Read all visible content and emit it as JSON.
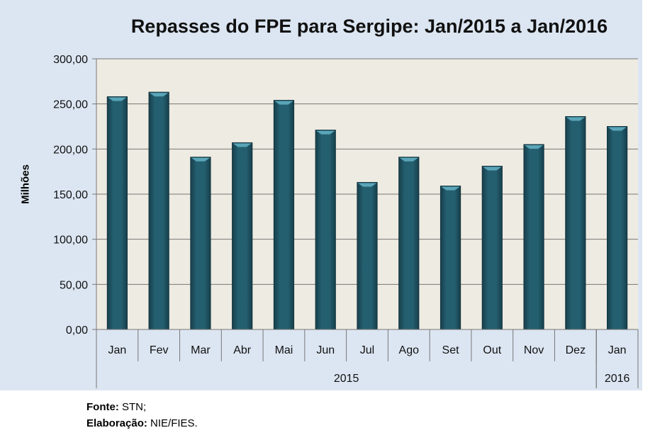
{
  "chart_data": {
    "type": "bar",
    "title": "Repasses do FPE para Sergipe: Jan/2015 a Jan/2016",
    "ylabel": "Milhões",
    "xlabel": "",
    "categories": [
      "Jan",
      "Fev",
      "Mar",
      "Abr",
      "Mai",
      "Jun",
      "Jul",
      "Ago",
      "Set",
      "Out",
      "Nov",
      "Dez",
      "Jan"
    ],
    "groups": [
      {
        "label": "2015",
        "span": 12
      },
      {
        "label": "2016",
        "span": 1
      }
    ],
    "values": [
      258,
      263,
      191,
      207,
      254,
      221,
      163,
      191,
      159,
      181,
      205,
      236,
      225
    ],
    "ylim": [
      0,
      300
    ],
    "yticks": [
      0,
      50,
      100,
      150,
      200,
      250,
      300
    ],
    "ytick_labels": [
      "0,00",
      "50,00",
      "100,00",
      "150,00",
      "200,00",
      "250,00",
      "300,00"
    ],
    "grid": true,
    "colors": {
      "bar": "#245f70",
      "plot_bg": "#eeebe2",
      "frame_bg": "#dce6f2"
    }
  },
  "footer": {
    "source_label": "Fonte:",
    "source_value": "STN;",
    "credit_label": "Elaboração:",
    "credit_value": "NIE/FIES."
  }
}
